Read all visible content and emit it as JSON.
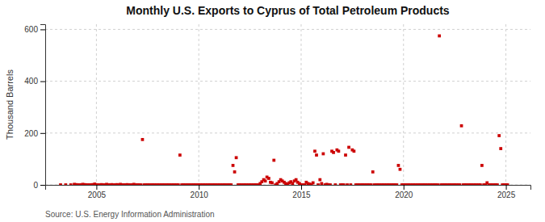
{
  "chart_data": {
    "type": "scatter",
    "title": "Monthly U.S. Exports to Cyprus of Total Petroleum Products",
    "y_label": "Thousand Barrels",
    "annotations": [
      "Source: U.S. Energy Information Administration"
    ],
    "color": "#cc0000",
    "marker": "square",
    "grid": true,
    "xlim": [
      2002.5,
      2026.2
    ],
    "xticks": [
      2005,
      2010,
      2015,
      2020,
      2025
    ],
    "ylim": [
      0,
      620
    ],
    "yticks": [
      0,
      200,
      400,
      600
    ],
    "x": [
      2003.25,
      2003.5,
      2003.75,
      2003.92,
      2004.0,
      2004.08,
      2004.17,
      2004.25,
      2004.33,
      2004.42,
      2004.5,
      2004.58,
      2004.67,
      2004.75,
      2004.83,
      2004.92,
      2005.0,
      2005.08,
      2005.17,
      2005.25,
      2005.33,
      2005.42,
      2005.5,
      2005.58,
      2005.67,
      2005.75,
      2005.83,
      2005.92,
      2006.0,
      2006.08,
      2006.17,
      2006.25,
      2006.33,
      2006.42,
      2006.5,
      2006.58,
      2006.67,
      2006.75,
      2006.83,
      2006.92,
      2007.0,
      2007.08,
      2007.17,
      2007.25,
      2007.33,
      2007.42,
      2007.5,
      2007.58,
      2007.67,
      2007.75,
      2007.83,
      2007.92,
      2008.0,
      2008.08,
      2008.17,
      2008.25,
      2008.33,
      2008.42,
      2008.5,
      2008.58,
      2008.67,
      2008.75,
      2008.83,
      2008.92,
      2009.0,
      2009.08,
      2009.17,
      2009.25,
      2009.33,
      2009.42,
      2009.5,
      2009.58,
      2009.67,
      2009.75,
      2009.83,
      2009.92,
      2010.0,
      2010.08,
      2010.17,
      2010.25,
      2010.33,
      2010.42,
      2010.5,
      2010.58,
      2010.67,
      2010.75,
      2010.83,
      2010.92,
      2011.0,
      2011.08,
      2011.17,
      2011.25,
      2011.33,
      2011.42,
      2011.5,
      2011.58,
      2011.67,
      2011.75,
      2011.83,
      2011.92,
      2012.0,
      2012.08,
      2012.17,
      2012.25,
      2012.33,
      2012.42,
      2012.5,
      2012.58,
      2012.67,
      2012.75,
      2012.83,
      2012.92,
      2013.0,
      2013.08,
      2013.17,
      2013.25,
      2013.33,
      2013.42,
      2013.5,
      2013.58,
      2013.67,
      2013.75,
      2013.83,
      2013.92,
      2014.0,
      2014.08,
      2014.17,
      2014.25,
      2014.33,
      2014.42,
      2014.5,
      2014.58,
      2014.67,
      2014.75,
      2014.83,
      2014.92,
      2015.0,
      2015.08,
      2015.17,
      2015.25,
      2015.33,
      2015.42,
      2015.5,
      2015.58,
      2015.67,
      2015.75,
      2015.83,
      2015.92,
      2016.0,
      2016.08,
      2016.17,
      2016.25,
      2016.33,
      2016.42,
      2016.5,
      2016.58,
      2016.67,
      2016.75,
      2016.83,
      2016.92,
      2017.0,
      2017.08,
      2017.17,
      2017.25,
      2017.33,
      2017.42,
      2017.5,
      2017.58,
      2017.67,
      2017.75,
      2017.83,
      2017.92,
      2018.0,
      2018.08,
      2018.17,
      2018.25,
      2018.33,
      2018.42,
      2018.5,
      2018.58,
      2018.67,
      2018.75,
      2018.83,
      2018.92,
      2019.0,
      2019.08,
      2019.17,
      2019.25,
      2019.33,
      2019.42,
      2019.5,
      2019.58,
      2019.67,
      2019.75,
      2019.83,
      2019.92,
      2020.0,
      2020.08,
      2020.17,
      2020.25,
      2020.33,
      2020.42,
      2020.5,
      2020.58,
      2020.67,
      2020.75,
      2020.83,
      2020.92,
      2021.0,
      2021.08,
      2021.17,
      2021.25,
      2021.33,
      2021.42,
      2021.5,
      2021.58,
      2021.67,
      2021.75,
      2021.83,
      2021.92,
      2022.0,
      2022.08,
      2022.17,
      2022.25,
      2022.33,
      2022.42,
      2022.5,
      2022.58,
      2022.67,
      2022.75,
      2022.83,
      2022.92,
      2023.0,
      2023.08,
      2023.17,
      2023.25,
      2023.33,
      2023.42,
      2023.5,
      2023.58,
      2023.67,
      2023.75,
      2023.83,
      2023.92,
      2024.0,
      2024.08,
      2024.17,
      2024.25,
      2024.33,
      2024.42,
      2024.5,
      2024.58,
      2024.67,
      2024.75,
      2024.83,
      2024.92,
      2025.0,
      2025.08
    ],
    "values": [
      0,
      0,
      0,
      2,
      1,
      0,
      0,
      0,
      2,
      1,
      0,
      0,
      0,
      0,
      1,
      3,
      0,
      0,
      0,
      1,
      0,
      0,
      2,
      0,
      0,
      1,
      0,
      0,
      1,
      0,
      2,
      0,
      0,
      0,
      1,
      0,
      0,
      0,
      2,
      0,
      0,
      0,
      0,
      175,
      0,
      0,
      0,
      0,
      0,
      0,
      0,
      0,
      0,
      0,
      0,
      0,
      0,
      0,
      0,
      0,
      0,
      0,
      0,
      0,
      0,
      115,
      0,
      0,
      0,
      0,
      0,
      0,
      0,
      0,
      0,
      0,
      0,
      0,
      0,
      0,
      0,
      0,
      0,
      0,
      0,
      0,
      0,
      0,
      0,
      0,
      0,
      0,
      0,
      0,
      0,
      0,
      75,
      50,
      105,
      0,
      0,
      0,
      0,
      0,
      0,
      0,
      0,
      0,
      0,
      0,
      0,
      0,
      5,
      12,
      20,
      15,
      30,
      25,
      10,
      8,
      95,
      0,
      5,
      12,
      20,
      15,
      10,
      5,
      3,
      8,
      12,
      5,
      15,
      20,
      10,
      5,
      0,
      0,
      0,
      10,
      5,
      3,
      0,
      8,
      130,
      115,
      0,
      20,
      5,
      120,
      0,
      2,
      0,
      0,
      130,
      125,
      0,
      135,
      130,
      0,
      0,
      0,
      115,
      0,
      145,
      0,
      135,
      130,
      0,
      0,
      0,
      0,
      0,
      0,
      0,
      0,
      0,
      0,
      50,
      0,
      0,
      0,
      0,
      0,
      0,
      0,
      0,
      0,
      0,
      0,
      0,
      0,
      0,
      75,
      60,
      0,
      0,
      0,
      0,
      0,
      0,
      0,
      0,
      0,
      0,
      0,
      0,
      0,
      0,
      0,
      0,
      0,
      0,
      0,
      0,
      0,
      0,
      575,
      0,
      0,
      0,
      0,
      0,
      0,
      0,
      0,
      0,
      0,
      0,
      0,
      228,
      0,
      0,
      0,
      0,
      0,
      0,
      0,
      0,
      0,
      0,
      0,
      75,
      0,
      0,
      8,
      0,
      0,
      0,
      0,
      0,
      0,
      190,
      140,
      0,
      0,
      0,
      0
    ]
  }
}
